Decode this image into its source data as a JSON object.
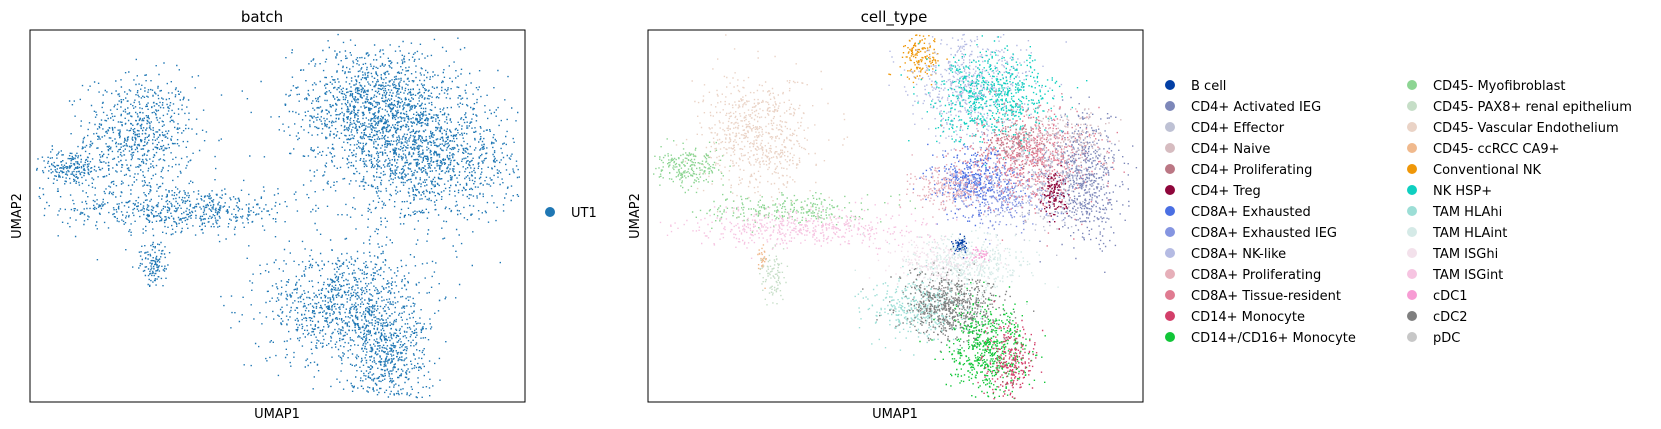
{
  "chart_data": [
    {
      "type": "scatter",
      "title": "batch",
      "xlabel": "UMAP1",
      "ylabel": "UMAP2",
      "x_ticks": "none",
      "y_ticks": "none",
      "legend": {
        "placement": "right",
        "entries": [
          {
            "name": "UT1",
            "color": "#1f77b4"
          }
        ]
      },
      "clusters": [
        {
          "name": "UT1",
          "x": 0.22,
          "y": 0.72,
          "sx": 0.055,
          "sy": 0.08,
          "n": 700,
          "color": "#1f77b4"
        },
        {
          "name": "UT1",
          "x": 0.08,
          "y": 0.63,
          "sx": 0.035,
          "sy": 0.025,
          "n": 220,
          "color": "#1f77b4"
        },
        {
          "name": "UT1",
          "x": 0.3,
          "y": 0.52,
          "sx": 0.12,
          "sy": 0.03,
          "n": 600,
          "color": "#1f77b4"
        },
        {
          "name": "UT1",
          "x": 0.7,
          "y": 0.8,
          "sx": 0.085,
          "sy": 0.08,
          "n": 1300,
          "color": "#1f77b4"
        },
        {
          "name": "UT1",
          "x": 0.8,
          "y": 0.65,
          "sx": 0.09,
          "sy": 0.08,
          "n": 1300,
          "color": "#1f77b4"
        },
        {
          "name": "UT1",
          "x": 0.64,
          "y": 0.26,
          "sx": 0.08,
          "sy": 0.08,
          "n": 1100,
          "color": "#1f77b4"
        },
        {
          "name": "UT1",
          "x": 0.72,
          "y": 0.12,
          "sx": 0.04,
          "sy": 0.06,
          "n": 450,
          "color": "#1f77b4"
        },
        {
          "name": "UT1",
          "x": 0.25,
          "y": 0.37,
          "sx": 0.015,
          "sy": 0.03,
          "n": 120,
          "color": "#1f77b4"
        }
      ]
    },
    {
      "type": "scatter",
      "title": "cell_type",
      "xlabel": "UMAP1",
      "ylabel": "UMAP2",
      "x_ticks": "none",
      "y_ticks": "none",
      "legend": {
        "placement": "right",
        "columns": 2,
        "entries": [
          {
            "name": "B cell",
            "color": "#023fa5"
          },
          {
            "name": "CD4+ Activated IEG",
            "color": "#7d87b9"
          },
          {
            "name": "CD4+ Effector",
            "color": "#bec1d4"
          },
          {
            "name": "CD4+ Naive",
            "color": "#d6bcc0"
          },
          {
            "name": "CD4+ Proliferating",
            "color": "#bb7784"
          },
          {
            "name": "CD4+ Treg",
            "color": "#8e063b"
          },
          {
            "name": "CD8A+ Exhausted",
            "color": "#4a6fe3"
          },
          {
            "name": "CD8A+ Exhausted IEG",
            "color": "#8595e1"
          },
          {
            "name": "CD8A+ NK-like",
            "color": "#b5bbe3"
          },
          {
            "name": "CD8A+ Proliferating",
            "color": "#e6afb9"
          },
          {
            "name": "CD8A+ Tissue-resident",
            "color": "#e07b91"
          },
          {
            "name": "CD14+ Monocyte",
            "color": "#d33f6a"
          },
          {
            "name": "CD14+/CD16+ Monocyte",
            "color": "#11c638"
          },
          {
            "name": "CD45- Myofibroblast",
            "color": "#8dd593"
          },
          {
            "name": "CD45- PAX8+ renal epithelium",
            "color": "#c6dec7"
          },
          {
            "name": "CD45- Vascular Endothelium",
            "color": "#ead3c6"
          },
          {
            "name": "CD45- ccRCC CA9+",
            "color": "#f0b98d"
          },
          {
            "name": "Conventional NK",
            "color": "#ef9708"
          },
          {
            "name": "NK HSP+",
            "color": "#0fcfc0"
          },
          {
            "name": "TAM HLAhi",
            "color": "#9cded6"
          },
          {
            "name": "TAM HLAint",
            "color": "#d5eae7"
          },
          {
            "name": "TAM ISGhi",
            "color": "#f3e1eb"
          },
          {
            "name": "TAM ISGint",
            "color": "#f6c4e1"
          },
          {
            "name": "cDC1",
            "color": "#f79cd4"
          },
          {
            "name": "cDC2",
            "color": "#7f7f7f"
          },
          {
            "name": "pDC",
            "color": "#c7c7c7"
          }
        ]
      },
      "clusters": [
        {
          "name": "CD45- Vascular Endothelium",
          "x": 0.22,
          "y": 0.72,
          "sx": 0.055,
          "sy": 0.08,
          "n": 700,
          "color": "#ead3c6"
        },
        {
          "name": "CD45- Myofibroblast",
          "x": 0.08,
          "y": 0.63,
          "sx": 0.035,
          "sy": 0.025,
          "n": 220,
          "color": "#8dd593"
        },
        {
          "name": "CD45- Myofibroblast",
          "x": 0.28,
          "y": 0.52,
          "sx": 0.08,
          "sy": 0.02,
          "n": 250,
          "color": "#8dd593"
        },
        {
          "name": "TAM ISGint",
          "x": 0.32,
          "y": 0.47,
          "sx": 0.12,
          "sy": 0.025,
          "n": 500,
          "color": "#f6c4e1"
        },
        {
          "name": "Conventional NK",
          "x": 0.55,
          "y": 0.93,
          "sx": 0.02,
          "sy": 0.03,
          "n": 150,
          "color": "#ef9708"
        },
        {
          "name": "CD8A+ NK-like",
          "x": 0.65,
          "y": 0.85,
          "sx": 0.06,
          "sy": 0.07,
          "n": 600,
          "color": "#b5bbe3"
        },
        {
          "name": "NK HSP+",
          "x": 0.7,
          "y": 0.82,
          "sx": 0.06,
          "sy": 0.06,
          "n": 700,
          "color": "#0fcfc0"
        },
        {
          "name": "CD8A+ Exhausted",
          "x": 0.66,
          "y": 0.6,
          "sx": 0.04,
          "sy": 0.04,
          "n": 400,
          "color": "#4a6fe3"
        },
        {
          "name": "CD8A+ Exhausted IEG",
          "x": 0.71,
          "y": 0.55,
          "sx": 0.05,
          "sy": 0.04,
          "n": 300,
          "color": "#8595e1"
        },
        {
          "name": "CD8A+ Tissue-resident",
          "x": 0.78,
          "y": 0.66,
          "sx": 0.06,
          "sy": 0.06,
          "n": 700,
          "color": "#e07b91"
        },
        {
          "name": "CD8A+ Proliferating",
          "x": 0.61,
          "y": 0.58,
          "sx": 0.04,
          "sy": 0.03,
          "n": 250,
          "color": "#e6afb9"
        },
        {
          "name": "CD4+ Activated IEG",
          "x": 0.88,
          "y": 0.6,
          "sx": 0.035,
          "sy": 0.08,
          "n": 600,
          "color": "#7d87b9"
        },
        {
          "name": "CD4+ Effector",
          "x": 0.8,
          "y": 0.6,
          "sx": 0.05,
          "sy": 0.07,
          "n": 300,
          "color": "#bec1d4"
        },
        {
          "name": "CD4+ Naive",
          "x": 0.84,
          "y": 0.72,
          "sx": 0.05,
          "sy": 0.04,
          "n": 200,
          "color": "#d6bcc0"
        },
        {
          "name": "CD4+ Proliferating",
          "x": 0.74,
          "y": 0.7,
          "sx": 0.03,
          "sy": 0.03,
          "n": 120,
          "color": "#bb7784"
        },
        {
          "name": "CD4+ Treg",
          "x": 0.82,
          "y": 0.56,
          "sx": 0.012,
          "sy": 0.03,
          "n": 120,
          "color": "#8e063b"
        },
        {
          "name": "B cell",
          "x": 0.63,
          "y": 0.42,
          "sx": 0.007,
          "sy": 0.012,
          "n": 80,
          "color": "#023fa5"
        },
        {
          "name": "TAM HLAint",
          "x": 0.64,
          "y": 0.37,
          "sx": 0.06,
          "sy": 0.04,
          "n": 450,
          "color": "#d5eae7"
        },
        {
          "name": "TAM HLAhi",
          "x": 0.55,
          "y": 0.25,
          "sx": 0.05,
          "sy": 0.04,
          "n": 400,
          "color": "#9cded6"
        },
        {
          "name": "cDC2",
          "x": 0.61,
          "y": 0.26,
          "sx": 0.05,
          "sy": 0.045,
          "n": 650,
          "color": "#7f7f7f"
        },
        {
          "name": "CD14+/CD16+ Monocyte",
          "x": 0.69,
          "y": 0.14,
          "sx": 0.04,
          "sy": 0.06,
          "n": 600,
          "color": "#11c638"
        },
        {
          "name": "CD14+ Monocyte",
          "x": 0.73,
          "y": 0.11,
          "sx": 0.025,
          "sy": 0.05,
          "n": 250,
          "color": "#d33f6a"
        },
        {
          "name": "TAM ISGhi",
          "x": 0.58,
          "y": 0.38,
          "sx": 0.05,
          "sy": 0.03,
          "n": 200,
          "color": "#f3e1eb"
        },
        {
          "name": "cDC1",
          "x": 0.67,
          "y": 0.4,
          "sx": 0.01,
          "sy": 0.01,
          "n": 30,
          "color": "#f79cd4"
        },
        {
          "name": "CD45- ccRCC CA9+",
          "x": 0.23,
          "y": 0.38,
          "sx": 0.005,
          "sy": 0.02,
          "n": 30,
          "color": "#f0b98d"
        },
        {
          "name": "CD45- PAX8+ renal epithelium",
          "x": 0.25,
          "y": 0.34,
          "sx": 0.012,
          "sy": 0.03,
          "n": 90,
          "color": "#c6dec7"
        }
      ]
    }
  ]
}
